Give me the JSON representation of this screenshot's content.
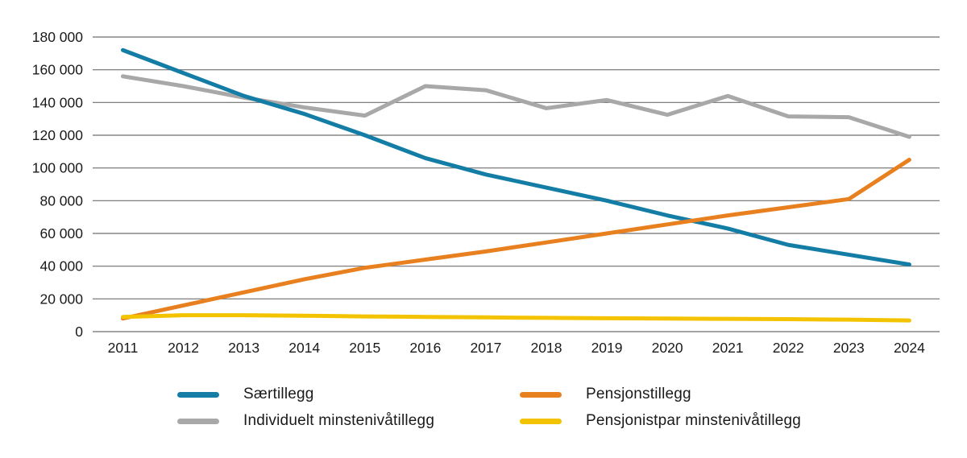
{
  "chart_data": {
    "type": "line",
    "title": "",
    "xlabel": "",
    "ylabel": "",
    "categories": [
      "2011",
      "2012",
      "2013",
      "2014",
      "2015",
      "2016",
      "2017",
      "2018",
      "2019",
      "2020",
      "2021",
      "2022",
      "2023",
      "2024"
    ],
    "series": [
      {
        "name": "Særtillegg",
        "color": "#147da5",
        "z": 1,
        "values": [
          172000,
          158000,
          144000,
          133000,
          120000,
          106000,
          96000,
          88000,
          80000,
          71000,
          63000,
          53000,
          47000,
          41000
        ]
      },
      {
        "name": "Pensjonstillegg",
        "color": "#e8801f",
        "z": 2,
        "values": [
          8000,
          16000,
          24000,
          32000,
          39000,
          44000,
          49000,
          54500,
          60000,
          65500,
          71000,
          76000,
          81000,
          105000
        ]
      },
      {
        "name": "Individuelt minstenivåtillegg",
        "color": "#a8a8a8",
        "z": 0,
        "values": [
          156000,
          150000,
          143000,
          137000,
          132000,
          150000,
          147500,
          136500,
          141500,
          132500,
          144000,
          131500,
          131000,
          119000
        ]
      },
      {
        "name": "Pensjonistpar minstenivåtillegg",
        "color": "#f3c300",
        "z": 3,
        "values": [
          9000,
          10000,
          10000,
          9700,
          9300,
          9000,
          8700,
          8400,
          8200,
          8000,
          7800,
          7600,
          7300,
          6800
        ]
      }
    ],
    "ylim": [
      0,
      180000
    ],
    "ytick_step": 20000,
    "ytick_labels": [
      "0",
      "20 000",
      "40 000",
      "60 000",
      "80 000",
      "100 000",
      "120 000",
      "140 000",
      "160 000",
      "180 000"
    ],
    "grid": "horizontal",
    "legend_position": "bottom"
  },
  "colors": {
    "grid": "#6e6e6e",
    "text": "#1a1a1a",
    "background": "#ffffff"
  }
}
